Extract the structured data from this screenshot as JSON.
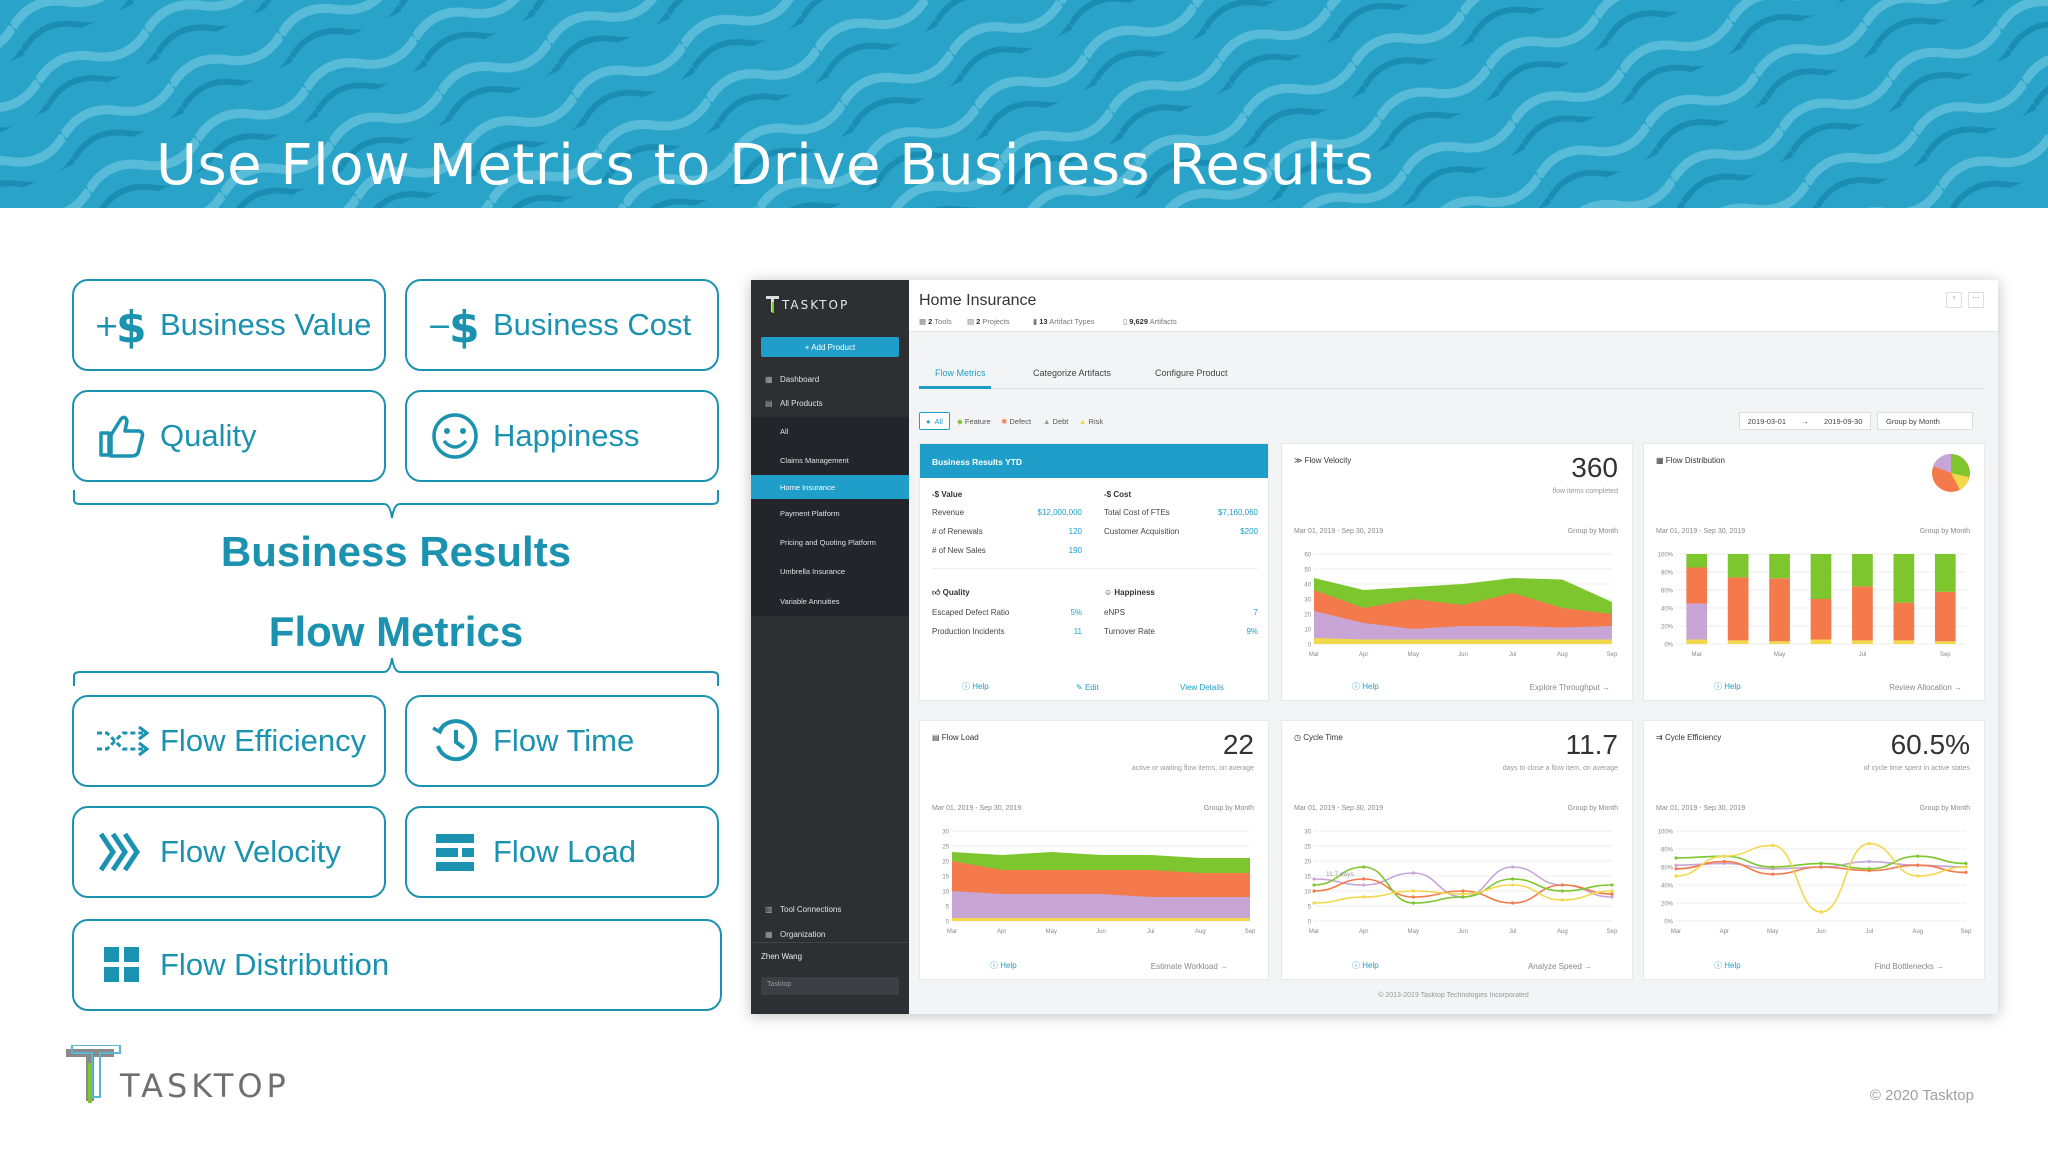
{
  "slide": {
    "title": "Use Flow Metrics to Drive Business Results",
    "copyright": "© 2020 Tasktop",
    "logo_text": "TASKTOP"
  },
  "business_boxes": [
    {
      "label": "Business Value",
      "icon": "plus-dollar-icon"
    },
    {
      "label": "Business Cost",
      "icon": "minus-dollar-icon"
    },
    {
      "label": "Quality",
      "icon": "thumbs-up-icon"
    },
    {
      "label": "Happiness",
      "icon": "smiley-icon"
    }
  ],
  "section_labels": {
    "business_results": "Business Results",
    "flow_metrics": "Flow Metrics"
  },
  "flow_boxes": [
    {
      "label": "Flow Efficiency",
      "icon": "flow-efficiency-icon"
    },
    {
      "label": "Flow Time",
      "icon": "clock-icon"
    },
    {
      "label": "Flow Velocity",
      "icon": "chevrons-icon"
    },
    {
      "label": "Flow Load",
      "icon": "stack-icon"
    },
    {
      "label": "Flow Distribution",
      "icon": "grid-icon"
    }
  ],
  "app": {
    "brand": "TASKTOP",
    "add_product": "+ Add Product",
    "nav": [
      "Dashboard",
      "All Products"
    ],
    "products": [
      "All",
      "Claims Management",
      "Home Insurance",
      "Payment Platform",
      "Pricing and Quoting Platform",
      "Umbrella Insurance",
      "Variable Annuities"
    ],
    "active_product": "Home Insurance",
    "bottom_nav": [
      "Tool Connections",
      "Organization"
    ],
    "user": "Zhen Wang",
    "org": "Tasktop",
    "page_title": "Home Insurance",
    "meta": [
      {
        "bold": "2",
        "text": " Tools"
      },
      {
        "bold": "2",
        "text": " Projects"
      },
      {
        "bold": "13",
        "text": " Artifact Types"
      },
      {
        "bold": "9,629",
        "text": " Artifacts"
      }
    ],
    "tabs": [
      "Flow Metrics",
      "Categorize Artifacts",
      "Configure Product"
    ],
    "filters": [
      "All",
      "Feature",
      "Defect",
      "Debt",
      "Risk"
    ],
    "date_from": "2019-03-01",
    "date_sep": "→",
    "date_to": "2019-09-30",
    "group_by": "Group by Month",
    "footer": "© 2013-2019 Tasktop Technologies Incorporated"
  },
  "business_results": {
    "header": "Business Results YTD",
    "value_title": "-$ Value",
    "cost_title": "-$ Cost",
    "value_rows": [
      [
        "Revenue",
        "$12,000,000"
      ],
      [
        "# of Renewals",
        "120"
      ],
      [
        "# of New Sales",
        "190"
      ]
    ],
    "cost_rows": [
      [
        "Total Cost of FTEs",
        "$7,160,060"
      ],
      [
        "Customer Acquisition",
        "$200"
      ]
    ],
    "quality_title": "Quality",
    "happiness_title": "Happiness",
    "quality_rows": [
      [
        "Escaped Defect Ratio",
        "5%"
      ],
      [
        "Production Incidents",
        "11"
      ]
    ],
    "happiness_rows": [
      [
        "eNPS",
        "7"
      ],
      [
        "Turnover Rate",
        "9%"
      ]
    ],
    "help": "Help",
    "edit": "Edit",
    "view": "View Details"
  },
  "cards": {
    "velocity": {
      "title": "Flow Velocity",
      "value": "360",
      "sub": "flow items completed",
      "range": "Mar 01, 2019 - Sep 30, 2019",
      "group": "Group by Month",
      "help": "Help",
      "action": "Explore Throughput →"
    },
    "distribution": {
      "title": "Flow Distribution",
      "range": "Mar 01, 2019 - Sep 30, 2019",
      "group": "Group by Month",
      "help": "Help",
      "action": "Review Allocation →"
    },
    "load": {
      "title": "Flow Load",
      "value": "22",
      "sub": "active or waiting flow items, on average",
      "range": "Mar 01, 2019 - Sep 30, 2019",
      "group": "Group by Month",
      "help": "Help",
      "action": "Estimate Workload →"
    },
    "cycle_time": {
      "title": "Cycle Time",
      "value": "11.7",
      "sub": "days to close a flow item, on average",
      "range": "Mar 01, 2019 - Sep 30, 2019",
      "group": "Group by Month",
      "help": "Help",
      "action": "Analyze Speed →",
      "annot": "11.7 days"
    },
    "efficiency": {
      "title": "Cycle Efficiency",
      "value": "60.5%",
      "sub": "of cycle time spent in active states",
      "range": "Mar 01, 2019 - Sep 30, 2019",
      "group": "Group by Month",
      "help": "Help",
      "action": "Find Bottlenecks →"
    }
  },
  "chart_data": [
    {
      "type": "area",
      "name": "Flow Velocity",
      "categories": [
        "Mar",
        "Apr",
        "May",
        "Jun",
        "Jul",
        "Aug",
        "Sep"
      ],
      "ylim": [
        0,
        60
      ],
      "yticks": [
        "60",
        "50",
        "40",
        "30",
        "20",
        "10",
        "0"
      ],
      "series": [
        {
          "values": [
            44,
            36,
            38,
            40,
            44,
            43,
            28
          ],
          "color": "#7dc62e"
        },
        {
          "values": [
            36,
            24,
            30,
            26,
            34,
            24,
            20
          ],
          "color": "#f47a4b"
        },
        {
          "values": [
            22,
            14,
            10,
            12,
            12,
            11,
            12
          ],
          "color": "#c7a6d6"
        },
        {
          "values": [
            4,
            3,
            3,
            3,
            3,
            3,
            3
          ],
          "color": "#f2d84b"
        }
      ]
    },
    {
      "type": "bar",
      "name": "Flow Distribution",
      "categories": [
        "Mar",
        "",
        "May",
        "",
        "Jul",
        "",
        "Sep"
      ],
      "yticks": [
        "100%",
        "80%",
        "60%",
        "40%",
        "20%",
        "0%"
      ],
      "series": [
        {
          "values": [
            5,
            4,
            3,
            5,
            4,
            4,
            3
          ],
          "color": "#f2d84b"
        },
        {
          "values": [
            40,
            0,
            0,
            0,
            0,
            0,
            0
          ],
          "color": "#c7a6d6"
        },
        {
          "values": [
            40,
            70,
            70,
            45,
            60,
            42,
            55
          ],
          "color": "#f47a4b"
        },
        {
          "values": [
            15,
            26,
            27,
            50,
            36,
            54,
            42
          ],
          "color": "#7dc62e"
        }
      ]
    },
    {
      "type": "area",
      "name": "Flow Load",
      "categories": [
        "Mar",
        "Apr",
        "May",
        "Jun",
        "Jul",
        "Aug",
        "Sep"
      ],
      "ylim": [
        0,
        30
      ],
      "yticks": [
        "30",
        "25",
        "20",
        "15",
        "10",
        "5",
        "0"
      ],
      "series": [
        {
          "values": [
            23,
            22,
            23,
            22,
            22,
            21,
            21
          ],
          "color": "#7dc62e"
        },
        {
          "values": [
            20,
            17,
            17,
            17,
            17,
            16,
            16
          ],
          "color": "#f47a4b"
        },
        {
          "values": [
            10,
            9,
            9,
            9,
            8,
            8,
            8
          ],
          "color": "#c7a6d6"
        },
        {
          "values": [
            1,
            1,
            1,
            1,
            1,
            1,
            1
          ],
          "color": "#f2d84b"
        }
      ]
    },
    {
      "type": "line",
      "name": "Cycle Time",
      "categories": [
        "Mar",
        "Apr",
        "May",
        "Jun",
        "Jul",
        "Aug",
        "Sep"
      ],
      "ylim": [
        0,
        30
      ],
      "yticks": [
        "30",
        "25",
        "20",
        "15",
        "10",
        "5",
        "0"
      ],
      "series": [
        {
          "values": [
            14,
            12,
            16,
            8,
            18,
            12,
            8
          ],
          "color": "#c7a6d6"
        },
        {
          "values": [
            10,
            14,
            8,
            10,
            6,
            12,
            9
          ],
          "color": "#f47a4b"
        },
        {
          "values": [
            12,
            18,
            6,
            8,
            14,
            10,
            12
          ],
          "color": "#7dc62e"
        },
        {
          "values": [
            6,
            8,
            10,
            9,
            12,
            7,
            10
          ],
          "color": "#f2d84b"
        }
      ]
    },
    {
      "type": "line",
      "name": "Cycle Efficiency",
      "categories": [
        "Mar",
        "Apr",
        "May",
        "Jun",
        "Jul",
        "Aug",
        "Sep"
      ],
      "ylim": [
        0,
        100
      ],
      "yticks": [
        "100%",
        "80%",
        "60%",
        "40%",
        "20%",
        "0%"
      ],
      "series": [
        {
          "values": [
            62,
            64,
            58,
            60,
            66,
            62,
            60
          ],
          "color": "#c7a6d6"
        },
        {
          "values": [
            58,
            66,
            52,
            60,
            56,
            62,
            54
          ],
          "color": "#f47a4b"
        },
        {
          "values": [
            70,
            72,
            60,
            64,
            58,
            72,
            64
          ],
          "color": "#7dc62e"
        },
        {
          "values": [
            50,
            72,
            84,
            10,
            86,
            50,
            60
          ],
          "color": "#f2d84b"
        }
      ]
    }
  ]
}
